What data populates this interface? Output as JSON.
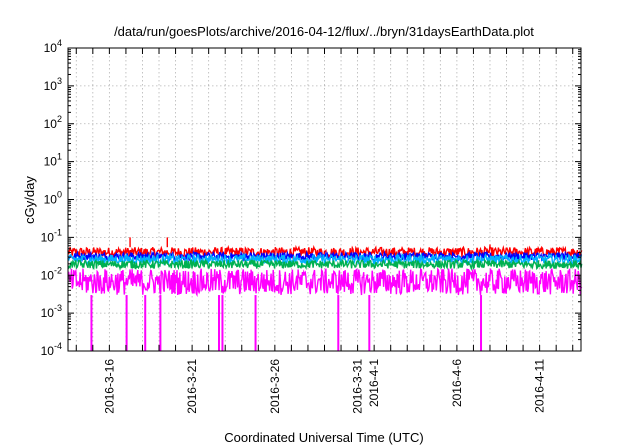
{
  "chart_data": {
    "type": "line",
    "title": "/data/run/goesPlots/archive/2016-04-12/flux/../bryn/31daysEarthData.plot",
    "xlabel": "Coordinated Universal Time (UTC)",
    "ylabel": "cGy/day",
    "y_scale": "log",
    "ylim": [
      0.0001,
      10000
    ],
    "xlim": [
      "2016-03-13T12:00",
      "2016-04-13T12:00"
    ],
    "y_ticks": [
      {
        "base": "10",
        "exp": "-4",
        "value": 0.0001
      },
      {
        "base": "10",
        "exp": "-3",
        "value": 0.001
      },
      {
        "base": "10",
        "exp": "-2",
        "value": 0.01
      },
      {
        "base": "10",
        "exp": "-1",
        "value": 0.1
      },
      {
        "base": "10",
        "exp": "0",
        "value": 1
      },
      {
        "base": "10",
        "exp": "1",
        "value": 10
      },
      {
        "base": "10",
        "exp": "2",
        "value": 100
      },
      {
        "base": "10",
        "exp": "3",
        "value": 1000
      },
      {
        "base": "10",
        "exp": "4",
        "value": 10000
      }
    ],
    "x_tick_labels": [
      {
        "label": "2016-3-16",
        "date": "2016-03-16"
      },
      {
        "label": "2016-3-21",
        "date": "2016-03-21"
      },
      {
        "label": "2016-3-26",
        "date": "2016-03-26"
      },
      {
        "label": "2016-3-31",
        "date": "2016-03-31"
      },
      {
        "label": "2016-4-1",
        "date": "2016-04-01"
      },
      {
        "label": "2016-4-6",
        "date": "2016-04-06"
      },
      {
        "label": "2016-4-11",
        "date": "2016-04-11"
      }
    ],
    "grid": true,
    "legend": "none",
    "series": [
      {
        "color": "#ff0000",
        "typical_range": [
          0.03,
          0.055
        ],
        "peaks": [
          {
            "date": "2016-03-17T06:00",
            "value": 0.1
          },
          {
            "date": "2016-03-19T12:00",
            "value": 0.1
          },
          {
            "date": "2016-04-08T00:00",
            "value": 0.065
          }
        ]
      },
      {
        "color": "#0000ff",
        "typical_range": [
          0.025,
          0.04
        ]
      },
      {
        "color": "#00b0ff",
        "typical_range": [
          0.02,
          0.035
        ]
      },
      {
        "color": "#00b050",
        "typical_range": [
          0.015,
          0.025
        ]
      },
      {
        "color": "#ff00ff",
        "typical_range": [
          0.003,
          0.015
        ],
        "dropouts": [
          {
            "date": "2016-03-14T22:00",
            "value": 0.0001
          },
          {
            "date": "2016-03-17T01:00",
            "value": 0.0001
          },
          {
            "date": "2016-03-18T04:00",
            "value": 0.0001
          },
          {
            "date": "2016-03-19T02:00",
            "value": 0.0001
          },
          {
            "date": "2016-03-22T15:00",
            "value": 0.0001
          },
          {
            "date": "2016-03-22T20:00",
            "value": 0.0001
          },
          {
            "date": "2016-03-24T20:00",
            "value": 0.0001
          },
          {
            "date": "2016-03-29T20:00",
            "value": 0.0001
          },
          {
            "date": "2016-03-31T17:00",
            "value": 0.0001
          },
          {
            "date": "2016-04-07T11:00",
            "value": 0.0001
          }
        ]
      }
    ]
  }
}
